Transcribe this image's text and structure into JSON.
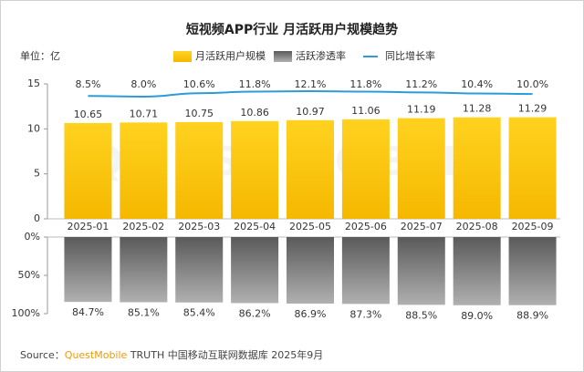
{
  "chart_data": {
    "type": "bar",
    "title": "短视频APP行业 月活跃用户规模趋势",
    "unit": "单位：亿",
    "watermark": "QUESTMOBILE",
    "categories": [
      "2025-01",
      "2025-02",
      "2025-03",
      "2025-04",
      "2025-05",
      "2025-06",
      "2025-07",
      "2025-08",
      "2025-09"
    ],
    "series": [
      {
        "name": "月活跃用户规模",
        "color": "#FFC000",
        "values": [
          10.65,
          10.71,
          10.75,
          10.86,
          10.97,
          11.06,
          11.19,
          11.28,
          11.29
        ]
      },
      {
        "name": "活跃渗透率",
        "color": "#808080",
        "axis": "y2",
        "values": [
          84.7,
          85.1,
          85.4,
          86.2,
          86.9,
          87.3,
          88.5,
          89.0,
          88.9
        ],
        "value_labels": [
          "84.7%",
          "85.1%",
          "85.4%",
          "86.2%",
          "86.9%",
          "87.3%",
          "88.5%",
          "89.0%",
          "88.9%"
        ]
      },
      {
        "name": "同比增长率",
        "type": "line",
        "color": "#2E9BD6",
        "values": [
          8.5,
          8.0,
          10.6,
          11.8,
          12.1,
          11.8,
          11.2,
          10.4,
          10.0
        ],
        "value_labels": [
          "8.5%",
          "8.0%",
          "10.6%",
          "11.8%",
          "12.1%",
          "11.8%",
          "11.2%",
          "10.4%",
          "10.0%"
        ]
      }
    ],
    "ylim": [
      0,
      15
    ],
    "yticks": [
      0,
      5,
      10,
      15
    ],
    "y2lim": [
      0,
      100
    ],
    "y2_inverted": true,
    "y2ticks": [
      {
        "value": 0,
        "label": "0%"
      },
      {
        "value": 50,
        "label": "50%"
      },
      {
        "value": 100,
        "label": "100%"
      }
    ],
    "source": {
      "label": "Source：",
      "brand": "QuestMobile",
      "text": "TRUTH 中国移动互联网数据库 2025年9月"
    }
  }
}
